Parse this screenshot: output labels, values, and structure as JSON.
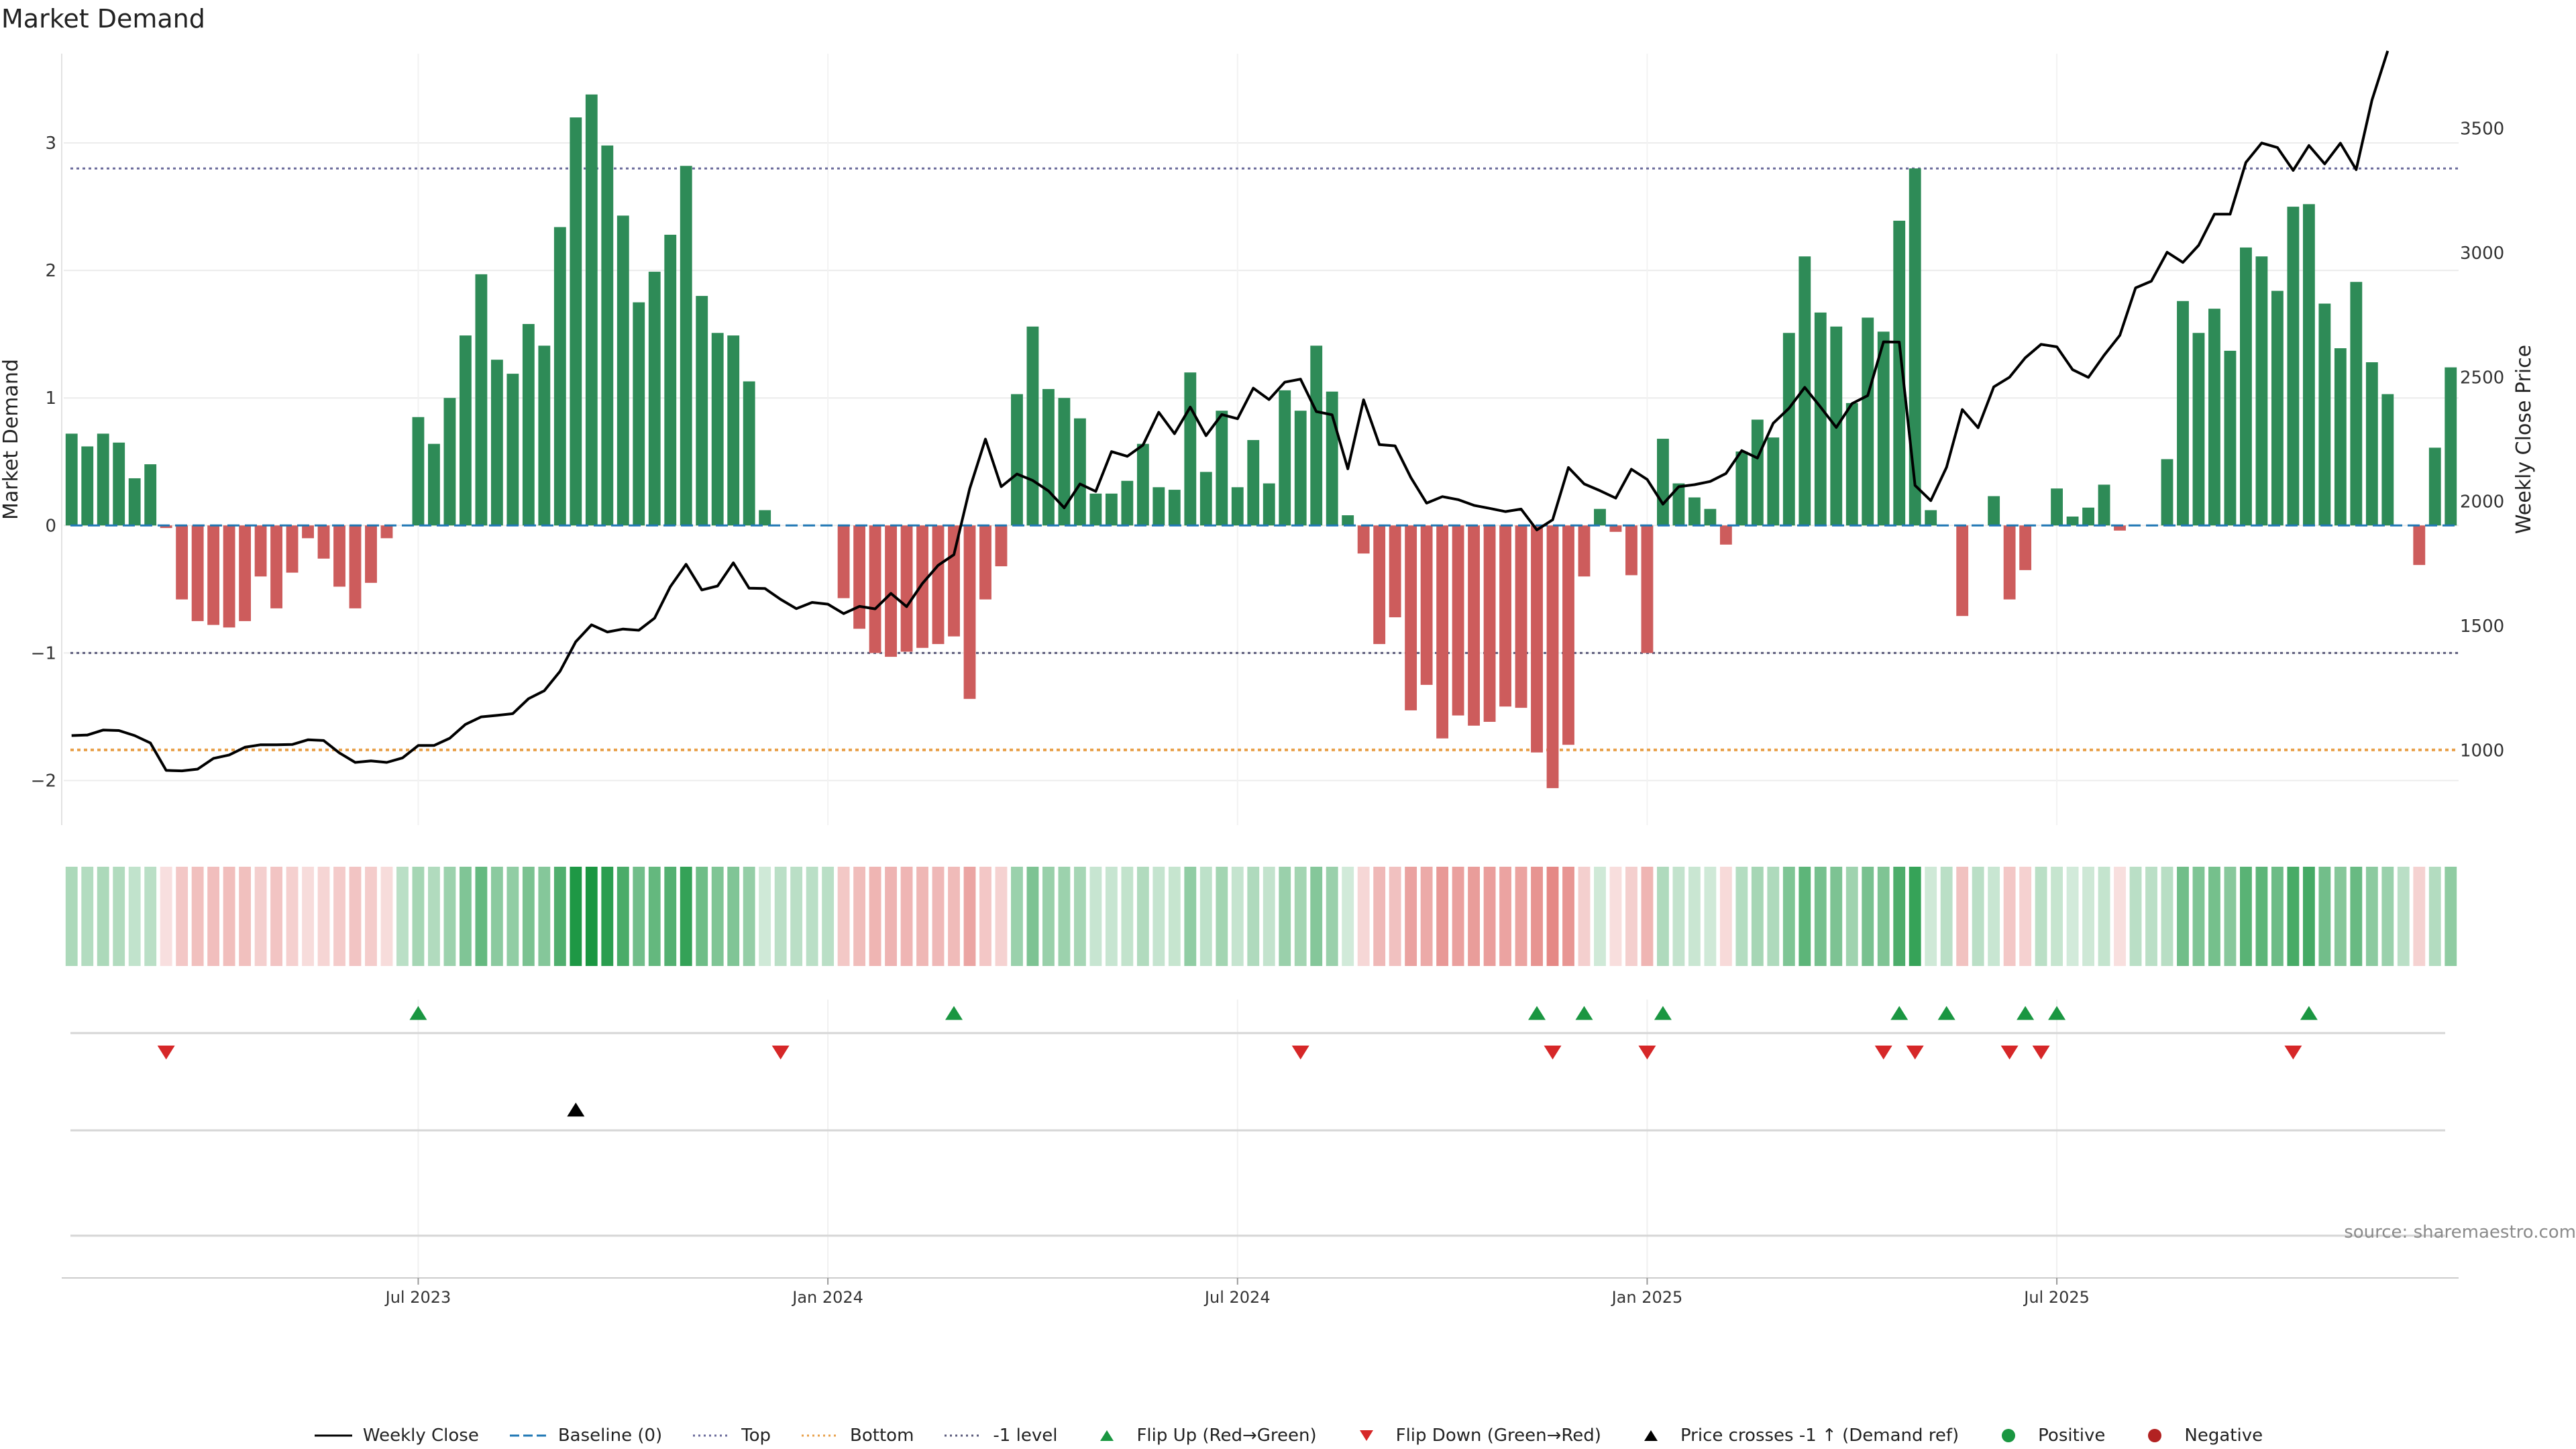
{
  "title": "Market Demand",
  "source_note": "source: sharemaestro.com",
  "chart_data": {
    "type": "bar",
    "title": "Market Demand",
    "ylabel_left": "Market Demand",
    "ylabel_right": "Weekly Close Price",
    "ylim_left": [
      -2.35,
      3.7
    ],
    "ylim_right": [
      700,
      3800
    ],
    "left_ticks": [
      {
        "v": 3,
        "t": "3"
      },
      {
        "v": 2,
        "t": "2"
      },
      {
        "v": 1,
        "t": "1"
      },
      {
        "v": 0,
        "t": "0"
      },
      {
        "v": -1,
        "t": "−1"
      },
      {
        "v": -2,
        "t": "−2"
      }
    ],
    "right_ticks": [
      {
        "v": 3500,
        "t": "3500"
      },
      {
        "v": 3000,
        "t": "3000"
      },
      {
        "v": 2500,
        "t": "2500"
      },
      {
        "v": 2000,
        "t": "2000"
      },
      {
        "v": 1500,
        "t": "1500"
      },
      {
        "v": 1000,
        "t": "1000"
      }
    ],
    "x_ticks": [
      {
        "i": 22,
        "t": "Jul 2023"
      },
      {
        "i": 48,
        "t": "Jan 2024"
      },
      {
        "i": 74,
        "t": "Jul 2024"
      },
      {
        "i": 100,
        "t": "Jan 2025"
      },
      {
        "i": 126,
        "t": "Jul 2025"
      }
    ],
    "reference_lines": {
      "top": 2.8,
      "minus_one": -1,
      "bottom": -1.76,
      "baseline": 0
    },
    "demand_values": [
      0.72,
      0.62,
      0.72,
      0.65,
      0.37,
      0.48,
      -0.02,
      -0.58,
      -0.75,
      -0.78,
      -0.8,
      -0.75,
      -0.4,
      -0.65,
      -0.37,
      -0.1,
      -0.26,
      -0.48,
      -0.65,
      -0.45,
      -0.1,
      0,
      0.85,
      0.64,
      1.0,
      1.49,
      1.97,
      1.3,
      1.19,
      1.58,
      1.41,
      2.34,
      3.2,
      3.38,
      2.98,
      2.43,
      1.75,
      1.99,
      2.28,
      2.82,
      1.8,
      1.51,
      1.49,
      1.13,
      0.12,
      0,
      0,
      0,
      0,
      -0.57,
      -0.81,
      -1.0,
      -1.03,
      -0.99,
      -0.96,
      -0.93,
      -0.87,
      -1.36,
      -0.58,
      -0.32,
      1.03,
      1.56,
      1.07,
      1.0,
      0.84,
      0.25,
      0.25,
      0.35,
      0.64,
      0.3,
      0.28,
      1.2,
      0.42,
      0.9,
      0.3,
      0.67,
      0.33,
      1.06,
      0.9,
      1.41,
      1.05,
      0.08,
      -0.22,
      -0.93,
      -0.72,
      -1.45,
      -1.25,
      -1.67,
      -1.49,
      -1.57,
      -1.54,
      -1.42,
      -1.43,
      -1.78,
      -2.06,
      -1.72,
      -0.4,
      0.13,
      -0.05,
      -0.39,
      -1.0,
      0.68,
      0.33,
      0.22,
      0.13,
      -0.15,
      0.58,
      0.83,
      0.69,
      1.51,
      2.11,
      1.67,
      1.56,
      0.96,
      1.63,
      1.52,
      2.39,
      2.8,
      0.12,
      0,
      -0.71,
      0,
      0.23,
      -0.58,
      -0.35,
      0,
      0.29,
      0.07,
      0.14,
      0.32,
      -0.04,
      0,
      0,
      0.52,
      1.76,
      1.51,
      1.7,
      1.37,
      2.18,
      2.11,
      1.84,
      2.5,
      2.52,
      1.74,
      1.39,
      1.91,
      1.28,
      1.03,
      0,
      -0.31,
      0.61,
      1.24
    ],
    "weekly_close": [
      1060,
      1062,
      1082,
      1080,
      1060,
      1030,
      920,
      918,
      925,
      968,
      982,
      1013,
      1023,
      1023,
      1024,
      1043,
      1040,
      990,
      952,
      958,
      952,
      970,
      1020,
      1020,
      1049,
      1105,
      1135,
      1141,
      1148,
      1208,
      1240,
      1318,
      1437,
      1505,
      1476,
      1488,
      1483,
      1532,
      1658,
      1748,
      1645,
      1661,
      1754,
      1652,
      1651,
      1607,
      1570,
      1595,
      1588,
      1550,
      1579,
      1569,
      1631,
      1578,
      1671,
      1744,
      1787,
      2052,
      2251,
      2060,
      2111,
      2085,
      2043,
      1975,
      2071,
      2041,
      2201,
      2182,
      2227,
      2359,
      2273,
      2380,
      2265,
      2350,
      2333,
      2456,
      2410,
      2480,
      2492,
      2362,
      2349,
      2132,
      2409,
      2229,
      2224,
      2097,
      1994,
      2020,
      2008,
      1985,
      1973,
      1960,
      1970,
      1886,
      1927,
      2137,
      2071,
      2044,
      2014,
      2130,
      2089,
      1990,
      2060,
      2068,
      2081,
      2113,
      2205,
      2175,
      2315,
      2375,
      2459,
      2380,
      2298,
      2394,
      2426,
      2642,
      2641,
      2065,
      2004,
      2138,
      2370,
      2297,
      2461,
      2500,
      2578,
      2632,
      2622,
      2530,
      2499,
      2588,
      2668,
      2859,
      2886,
      3002,
      2961,
      3030,
      3155,
      3155,
      3363,
      3441,
      3423,
      3331,
      3431,
      3357,
      3440,
      3334,
      3613,
      3811
    ],
    "demand_band_opacity": "proportional to |demand| in the heat strip",
    "event_rows": [
      {
        "name": "Flip Up (Red→Green)",
        "color": "#1a9641",
        "indices": [
          22,
          56,
          93,
          96,
          101,
          116,
          119,
          124,
          126,
          142
        ]
      },
      {
        "name": "Flip Down (Green→Red)",
        "color": "#d62728",
        "indices": [
          6,
          45,
          78,
          94,
          100,
          115,
          117,
          123,
          125,
          141
        ]
      },
      {
        "name": "Price crosses -1 ↑ (Demand ref)",
        "color": "#000000",
        "indices": [
          32
        ]
      }
    ],
    "colors": {
      "positive": "#2e8b57",
      "negative": "#cd5c5c",
      "price": "#000000",
      "top": "#6a6a9a",
      "bottom": "#e8a04a",
      "minus_one": "#5a5a7a",
      "baseline": "#1f77b4",
      "strip_pos": "#1a9641",
      "strip_neg": "#d9534f"
    },
    "legend": [
      {
        "label": "Weekly Close",
        "kind": "line-solid",
        "color": "#000000"
      },
      {
        "label": "Baseline (0)",
        "kind": "line-dash",
        "color": "#1f77b4"
      },
      {
        "label": "Top",
        "kind": "line-dot",
        "color": "#6a6a9a"
      },
      {
        "label": "Bottom",
        "kind": "line-dot",
        "color": "#e8a04a"
      },
      {
        "label": "-1 level",
        "kind": "line-dot",
        "color": "#5a5a7a"
      },
      {
        "label": "Flip Up (Red→Green)",
        "kind": "tri-up",
        "color": "#1a9641"
      },
      {
        "label": "Flip Down (Green→Red)",
        "kind": "tri-down",
        "color": "#d62728"
      },
      {
        "label": "Price crosses -1 ↑ (Demand ref)",
        "kind": "tri-up",
        "color": "#000000"
      },
      {
        "label": "Positive",
        "kind": "dot",
        "color": "#1a9641"
      },
      {
        "label": "Negative",
        "kind": "dot",
        "color": "#b22222"
      }
    ]
  }
}
